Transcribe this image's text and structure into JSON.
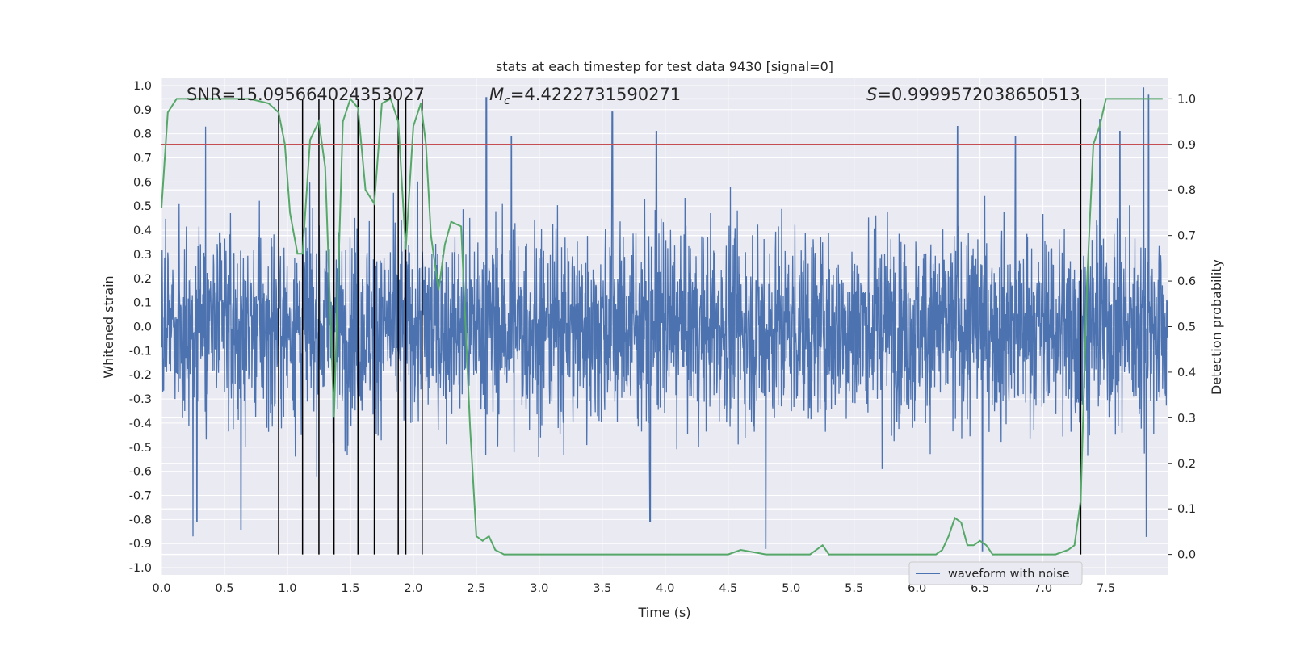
{
  "chart_data": {
    "type": "line",
    "title": "stats at each timestep for test data 9430 [signal=0]",
    "xlabel": "Time (s)",
    "ylabel": "Whitened strain",
    "ylabel_right": "Detection probability",
    "xlim": [
      0.0,
      7.99
    ],
    "ylim": [
      -1.03,
      1.03
    ],
    "ylim_right": [
      -0.045,
      1.045
    ],
    "x_ticks": [
      "0.0",
      "0.5",
      "1.0",
      "1.5",
      "2.0",
      "2.5",
      "3.0",
      "3.5",
      "4.0",
      "4.5",
      "5.0",
      "5.5",
      "6.0",
      "6.5",
      "7.0",
      "7.5"
    ],
    "y_ticks": [
      "1.0",
      "0.9",
      "0.8",
      "0.7",
      "0.6",
      "0.5",
      "0.4",
      "0.3",
      "0.2",
      "0.1",
      "0.0",
      "-0.1",
      "-0.2",
      "-0.3",
      "-0.4",
      "-0.5",
      "-0.6",
      "-0.7",
      "-0.8",
      "-0.9",
      "-1.0"
    ],
    "y_ticks_right": [
      "1.0",
      "0.9",
      "0.8",
      "0.7",
      "0.6",
      "0.5",
      "0.4",
      "0.3",
      "0.2",
      "0.1",
      "0.0"
    ],
    "grid": true,
    "legend_position": "bottom-right",
    "annotations": {
      "snr": "SNR=15.095664024353027",
      "mc_symbol": "M",
      "mc_sub": "c",
      "mc_value": "=4.4222731590271",
      "s_symbol": "S",
      "s_value": "=0.9999572038650513"
    },
    "threshold_right": 0.9,
    "vlines_x": [
      0.93,
      1.12,
      1.25,
      1.37,
      1.56,
      1.69,
      1.88,
      1.94,
      2.07,
      7.3
    ],
    "series": [
      {
        "name": "waveform with noise",
        "color": "#4c72b0",
        "kind": "noise",
        "duration_s": 8.0,
        "envelope_typical": 0.42,
        "peaks": [
          {
            "x": 0.35,
            "y": 0.83
          },
          {
            "x": 0.25,
            "y": -0.87
          },
          {
            "x": 0.28,
            "y": -0.81
          },
          {
            "x": 0.63,
            "y": -0.84
          },
          {
            "x": 2.58,
            "y": 0.95
          },
          {
            "x": 2.78,
            "y": 0.79
          },
          {
            "x": 3.58,
            "y": 0.89
          },
          {
            "x": 3.88,
            "y": -0.81
          },
          {
            "x": 3.93,
            "y": 0.81
          },
          {
            "x": 4.8,
            "y": -0.92
          },
          {
            "x": 6.32,
            "y": 0.83
          },
          {
            "x": 6.52,
            "y": -0.93
          },
          {
            "x": 6.78,
            "y": 0.79
          },
          {
            "x": 7.45,
            "y": 0.86
          },
          {
            "x": 7.61,
            "y": 0.81
          },
          {
            "x": 7.8,
            "y": 0.99
          },
          {
            "x": 7.82,
            "y": -0.87
          },
          {
            "x": 7.84,
            "y": 0.96
          }
        ]
      },
      {
        "name": "",
        "color": "#55a868",
        "axis": "right",
        "x": [
          0.0,
          0.05,
          0.12,
          0.3,
          0.5,
          0.7,
          0.85,
          0.93,
          0.98,
          1.02,
          1.08,
          1.12,
          1.18,
          1.25,
          1.3,
          1.37,
          1.44,
          1.5,
          1.56,
          1.62,
          1.69,
          1.75,
          1.82,
          1.88,
          1.94,
          2.0,
          2.06,
          2.1,
          2.14,
          2.2,
          2.25,
          2.3,
          2.38,
          2.45,
          2.5,
          2.55,
          2.6,
          2.65,
          2.72,
          2.8,
          3.0,
          3.2,
          3.5,
          3.8,
          4.0,
          4.3,
          4.5,
          4.6,
          4.8,
          5.0,
          5.15,
          5.2,
          5.25,
          5.3,
          5.4,
          5.6,
          5.8,
          6.0,
          6.15,
          6.2,
          6.25,
          6.3,
          6.35,
          6.4,
          6.45,
          6.5,
          6.55,
          6.6,
          6.7,
          6.9,
          7.1,
          7.2,
          7.25,
          7.3,
          7.35,
          7.4,
          7.45,
          7.5,
          7.6,
          7.7,
          7.8,
          7.85,
          7.9,
          7.95
        ],
        "values": [
          0.76,
          0.97,
          1.0,
          1.0,
          1.0,
          1.0,
          0.99,
          0.97,
          0.9,
          0.75,
          0.66,
          0.66,
          0.91,
          0.95,
          0.85,
          0.3,
          0.95,
          1.0,
          0.98,
          0.8,
          0.77,
          0.99,
          1.0,
          0.95,
          0.67,
          0.94,
          0.99,
          0.9,
          0.7,
          0.58,
          0.68,
          0.73,
          0.72,
          0.28,
          0.04,
          0.03,
          0.04,
          0.01,
          0.0,
          0.0,
          0.0,
          0.0,
          0.0,
          0.0,
          0.0,
          0.0,
          0.0,
          0.01,
          0.0,
          0.0,
          0.0,
          0.01,
          0.02,
          0.0,
          0.0,
          0.0,
          0.0,
          0.0,
          0.0,
          0.01,
          0.04,
          0.08,
          0.07,
          0.02,
          0.02,
          0.03,
          0.02,
          0.0,
          0.0,
          0.0,
          0.0,
          0.01,
          0.02,
          0.12,
          0.6,
          0.9,
          0.94,
          1.0,
          1.0,
          1.0,
          1.0,
          1.0,
          1.0,
          1.0
        ]
      }
    ]
  },
  "colors": {
    "plot_bg": "#eaeaf2",
    "grid": "#ffffff",
    "threshold": "#c44e52",
    "vline": "#000000",
    "text": "#262626"
  }
}
